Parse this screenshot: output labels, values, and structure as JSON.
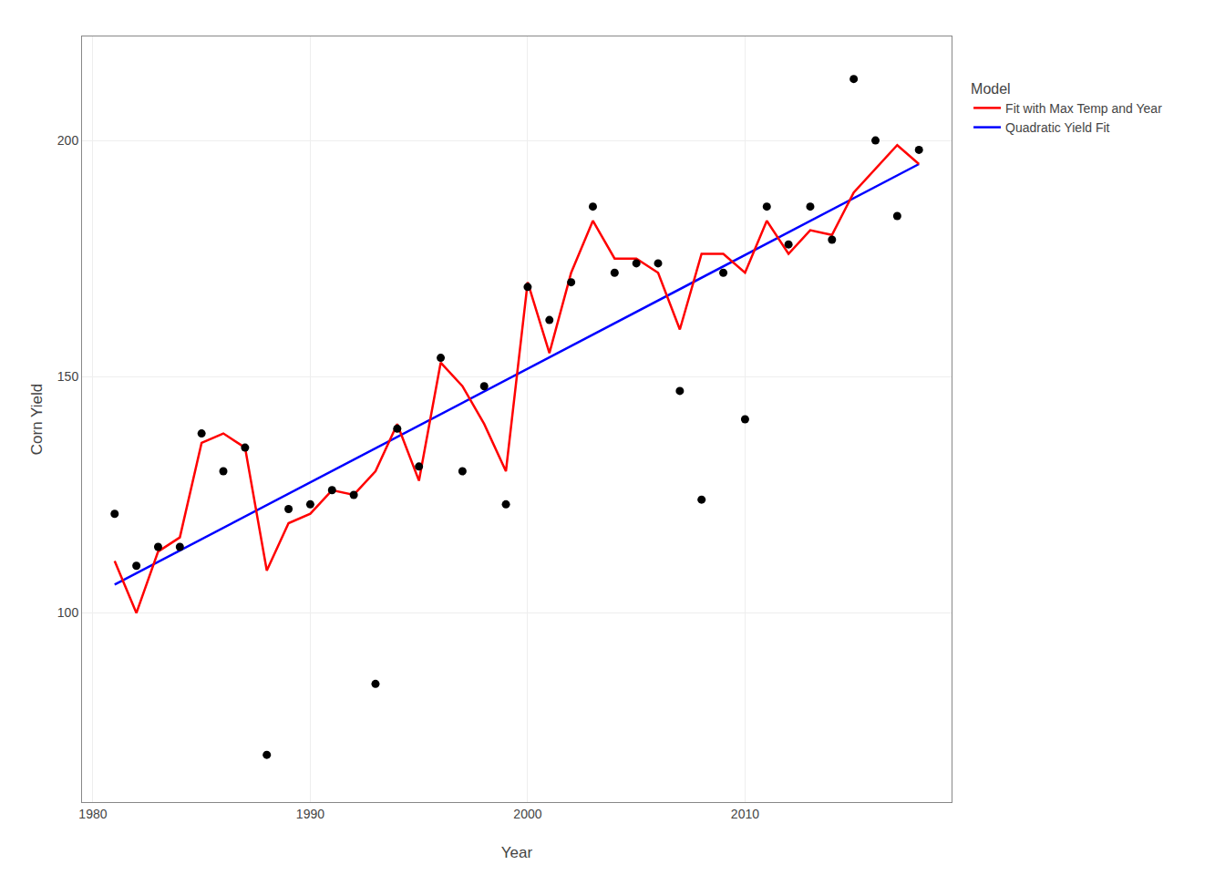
{
  "chart_data": {
    "type": "line",
    "xlabel": "Year",
    "ylabel": "Corn Yield",
    "legend_title": "Model",
    "xlim": [
      1979.5,
      2019.5
    ],
    "ylim": [
      60,
      222
    ],
    "xticks": [
      1980,
      1990,
      2000,
      2010
    ],
    "yticks": [
      100,
      150,
      200
    ],
    "grid": true,
    "legend": "right",
    "series": [
      {
        "name": "Quadratic Yield Fit",
        "type": "line",
        "color": "#0000ff",
        "x": [
          1981,
          2018
        ],
        "values": [
          106,
          195
        ]
      },
      {
        "name": "Fit with Max Temp and Year",
        "type": "line",
        "color": "#ff0000",
        "x": [
          1981,
          1982,
          1983,
          1984,
          1985,
          1986,
          1987,
          1988,
          1989,
          1990,
          1991,
          1992,
          1993,
          1994,
          1995,
          1996,
          1997,
          1998,
          1999,
          2000,
          2001,
          2002,
          2003,
          2004,
          2005,
          2006,
          2007,
          2008,
          2009,
          2010,
          2011,
          2012,
          2013,
          2014,
          2015,
          2016,
          2017,
          2018
        ],
        "values": [
          111,
          100,
          113,
          116,
          136,
          138,
          135,
          109,
          119,
          121,
          126,
          125,
          130,
          140,
          128,
          153,
          148,
          140,
          130,
          170,
          155,
          172,
          183,
          175,
          175,
          172,
          160,
          176,
          176,
          172,
          183,
          176,
          181,
          180,
          189,
          194,
          199,
          195
        ]
      },
      {
        "type": "scatter",
        "color": "#000000",
        "marker": "circle",
        "x": [
          1981,
          1982,
          1983,
          1984,
          1985,
          1986,
          1987,
          1988,
          1989,
          1990,
          1991,
          1992,
          1993,
          1994,
          1995,
          1996,
          1997,
          1998,
          1999,
          2000,
          2001,
          2002,
          2003,
          2004,
          2005,
          2006,
          2007,
          2008,
          2009,
          2010,
          2011,
          2012,
          2013,
          2014,
          2015,
          2016,
          2017,
          2018
        ],
        "values": [
          121,
          110,
          114,
          114,
          138,
          130,
          135,
          70,
          122,
          123,
          126,
          125,
          85,
          139,
          131,
          154,
          130,
          148,
          123,
          169,
          162,
          170,
          186,
          172,
          174,
          174,
          147,
          124,
          172,
          141,
          186,
          178,
          186,
          179,
          213,
          200,
          184,
          198
        ]
      }
    ]
  }
}
